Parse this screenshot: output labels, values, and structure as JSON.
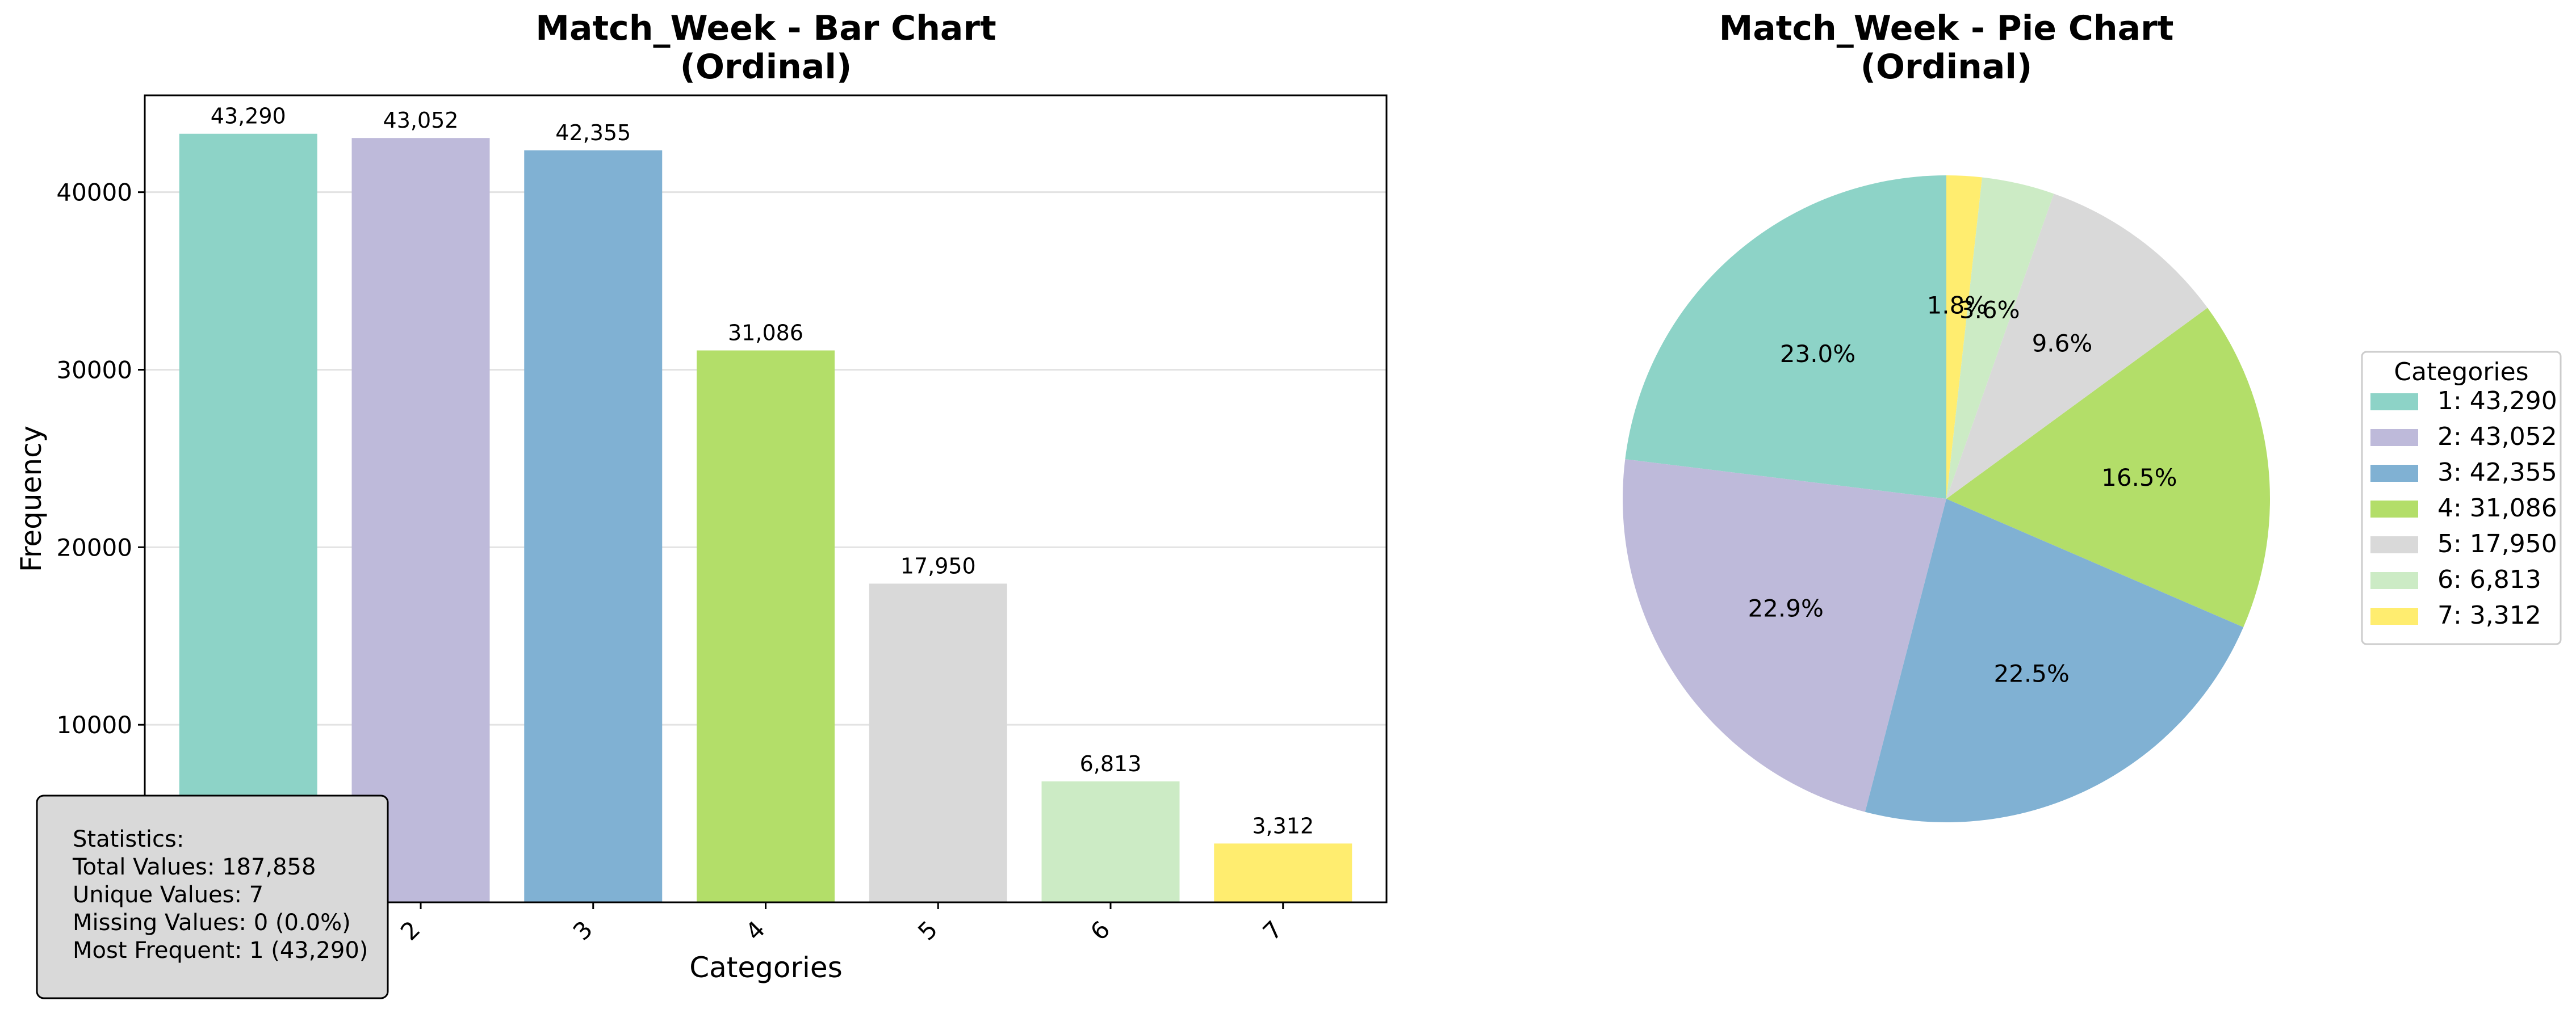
{
  "chart_data": [
    {
      "type": "bar",
      "title": "Match_Week - Bar Chart",
      "subtitle": "(Ordinal)",
      "xlabel": "Categories",
      "ylabel": "Frequency",
      "categories": [
        "1",
        "2",
        "3",
        "4",
        "5",
        "6",
        "7"
      ],
      "values": [
        43290,
        43052,
        42355,
        31086,
        17950,
        6813,
        3312
      ],
      "value_labels": [
        "43,290",
        "43,052",
        "42,355",
        "31,086",
        "17,950",
        "6,813",
        "3,312"
      ],
      "colors": [
        "#8dd3c7",
        "#bebada",
        "#80b1d3",
        "#b3de69",
        "#d9d9d9",
        "#ccebc5",
        "#ffed6f"
      ],
      "ylim": [
        0,
        45455
      ],
      "yticks": [
        10000,
        20000,
        30000,
        40000
      ],
      "ytick_labels": [
        "10000",
        "20000",
        "30000",
        "40000"
      ],
      "grid": true,
      "stats_box": {
        "lines": [
          "Statistics:",
          "Total Values: 187,858",
          "Unique Values: 7",
          "Missing Values: 0 (0.0%)",
          "Most Frequent: 1 (43,290)"
        ]
      }
    },
    {
      "type": "pie",
      "title": "Match_Week - Pie Chart",
      "subtitle": "(Ordinal)",
      "categories": [
        "1",
        "2",
        "3",
        "4",
        "5",
        "6",
        "7"
      ],
      "values": [
        43290,
        43052,
        42355,
        31086,
        17950,
        6813,
        3312
      ],
      "pct_labels": [
        "23.0%",
        "22.9%",
        "22.5%",
        "16.5%",
        "9.6%",
        "3.6%",
        "1.8%"
      ],
      "colors": [
        "#8dd3c7",
        "#bebada",
        "#80b1d3",
        "#b3de69",
        "#d9d9d9",
        "#ccebc5",
        "#ffed6f"
      ],
      "legend": {
        "title": "Categories",
        "placement": "right",
        "entries": [
          "1: 43,290",
          "2: 43,052",
          "3: 42,355",
          "4: 31,086",
          "5: 17,950",
          "6: 6,813",
          "7: 3,312"
        ]
      }
    }
  ]
}
